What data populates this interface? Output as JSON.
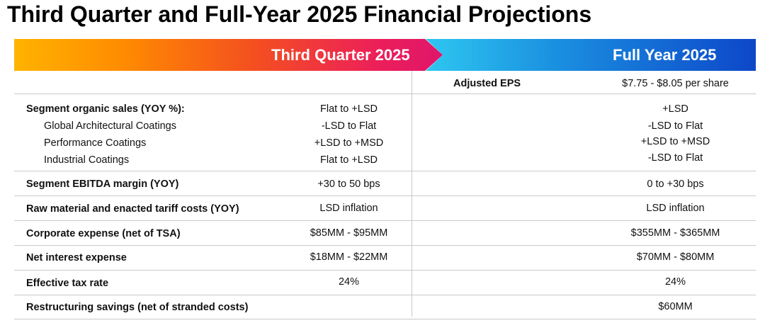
{
  "title": "Third Quarter and Full-Year 2025 Financial Projections",
  "banner": {
    "q3_label": "Third Quarter 2025",
    "fy_label": "Full Year 2025"
  },
  "eps": {
    "label": "Adjusted EPS",
    "fy_value": "$7.75 - $8.05 per share"
  },
  "segment_sales": {
    "label": "Segment organic sales (YOY %):",
    "q3": "Flat to +LSD",
    "fy": "+LSD",
    "subs": [
      {
        "label": "Global Architectural Coatings",
        "q3": "-LSD to Flat",
        "fy": "-LSD to Flat"
      },
      {
        "label": "Performance Coatings",
        "q3": "+LSD to +MSD",
        "fy": "+LSD to +MSD"
      },
      {
        "label": "Industrial Coatings",
        "q3": "Flat to +LSD",
        "fy": "-LSD to Flat"
      }
    ]
  },
  "rows": [
    {
      "label": "Segment EBITDA margin (YOY)",
      "q3": "+30 to 50 bps",
      "fy": "0 to +30 bps"
    },
    {
      "label": "Raw material and enacted tariff costs (YOY)",
      "q3": "LSD inflation",
      "fy": "LSD inflation"
    },
    {
      "label": "Corporate expense (net of TSA)",
      "q3": "$85MM - $95MM",
      "fy": "$355MM - $365MM"
    },
    {
      "label": "Net interest expense",
      "q3": "$18MM - $22MM",
      "fy": "$70MM - $80MM"
    },
    {
      "label": "Effective tax rate",
      "q3": "24%",
      "fy": "24%"
    },
    {
      "label": "Restructuring savings (net of stranded costs)",
      "q3": "",
      "fy": "$60MM"
    }
  ],
  "colors": {
    "q3_gradient": [
      "#ffb300",
      "#f4511e",
      "#e0156a"
    ],
    "fy_gradient": [
      "#2ec7f0",
      "#1a8fe0",
      "#0d47c9"
    ],
    "divider": "#c9c9c9"
  }
}
